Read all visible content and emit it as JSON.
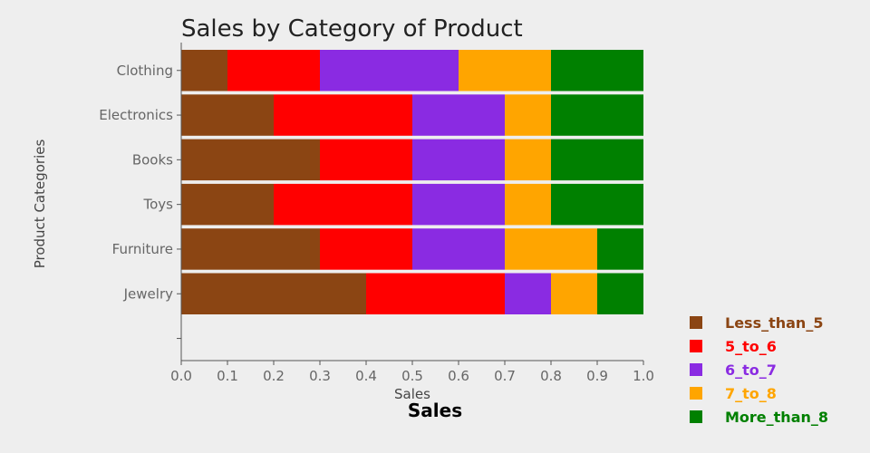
{
  "chart_data": {
    "type": "bar",
    "orientation": "horizontal",
    "stacked": true,
    "title": "Sales by Category of Product",
    "xlabel": "Sales",
    "xlabel_secondary": "Sales",
    "ylabel": "Product Categories",
    "categories": [
      "Clothing",
      "Electronics",
      "Books",
      "Toys",
      "Furniture",
      "Jewelry"
    ],
    "xlim": [
      0,
      1
    ],
    "x_ticks": [
      "0.0",
      "0.1",
      "0.2",
      "0.3",
      "0.4",
      "0.5",
      "0.6",
      "0.7",
      "0.8",
      "0.9",
      "1.0"
    ],
    "series": [
      {
        "name": "Less_than_5",
        "color": "#8b4513",
        "values": [
          0.1,
          0.2,
          0.3,
          0.2,
          0.3,
          0.4
        ]
      },
      {
        "name": "5_to_6",
        "color": "#ff0000",
        "values": [
          0.2,
          0.3,
          0.2,
          0.3,
          0.2,
          0.3
        ]
      },
      {
        "name": "6_to_7",
        "color": "#8a2be2",
        "values": [
          0.3,
          0.2,
          0.2,
          0.2,
          0.2,
          0.1
        ]
      },
      {
        "name": "7_to_8",
        "color": "#ffa500",
        "values": [
          0.2,
          0.1,
          0.1,
          0.1,
          0.2,
          0.1
        ]
      },
      {
        "name": "More_than_8",
        "color": "#008000",
        "values": [
          0.2,
          0.2,
          0.2,
          0.2,
          0.1,
          0.1
        ]
      }
    ],
    "grid": false,
    "legend_position": "bottom-right",
    "background": "#eeeeee"
  }
}
